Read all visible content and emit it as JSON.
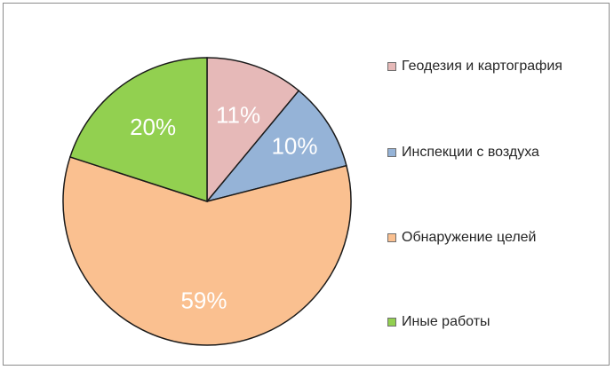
{
  "chart_data": {
    "type": "pie",
    "title": "",
    "series": [
      {
        "name": "Геодезия и картография",
        "value": 11,
        "label": "11%",
        "color": "#e6b9b8"
      },
      {
        "name": "Инспекции с воздуха",
        "value": 10,
        "label": "10%",
        "color": "#95b3d7"
      },
      {
        "name": "Обнаружение целей",
        "value": 59,
        "label": "59%",
        "color": "#fac090"
      },
      {
        "name": "Иные работы",
        "value": 20,
        "label": "20%",
        "color": "#92d050"
      }
    ],
    "legend_position": "right",
    "start_angle": "12 o'clock",
    "direction": "clockwise"
  }
}
